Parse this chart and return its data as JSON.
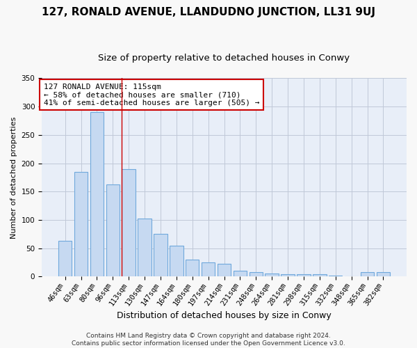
{
  "title1": "127, RONALD AVENUE, LLANDUDNO JUNCTION, LL31 9UJ",
  "title2": "Size of property relative to detached houses in Conwy",
  "xlabel": "Distribution of detached houses by size in Conwy",
  "ylabel": "Number of detached properties",
  "categories": [
    "46sqm",
    "63sqm",
    "80sqm",
    "96sqm",
    "113sqm",
    "130sqm",
    "147sqm",
    "164sqm",
    "180sqm",
    "197sqm",
    "214sqm",
    "231sqm",
    "248sqm",
    "264sqm",
    "281sqm",
    "298sqm",
    "315sqm",
    "332sqm",
    "348sqm",
    "365sqm",
    "382sqm"
  ],
  "values": [
    63,
    185,
    290,
    163,
    190,
    103,
    75,
    55,
    30,
    25,
    22,
    10,
    8,
    5,
    4,
    4,
    4,
    2,
    1,
    8,
    8
  ],
  "bar_color": "#c6d9f1",
  "bar_edge_color": "#6fa8dc",
  "bar_linewidth": 0.8,
  "grid_color": "#c0c8d8",
  "bg_color": "#e8eef8",
  "fig_bg_color": "#f8f8f8",
  "annotation_box_color": "#ffffff",
  "annotation_border_color": "#cc0000",
  "annotation_text_line1": "127 RONALD AVENUE: 115sqm",
  "annotation_text_line2": "← 58% of detached houses are smaller (710)",
  "annotation_text_line3": "41% of semi-detached houses are larger (505) →",
  "ylim": [
    0,
    350
  ],
  "yticks": [
    0,
    50,
    100,
    150,
    200,
    250,
    300,
    350
  ],
  "footer_line1": "Contains HM Land Registry data © Crown copyright and database right 2024.",
  "footer_line2": "Contains public sector information licensed under the Open Government Licence v3.0.",
  "title1_fontsize": 11,
  "title2_fontsize": 9.5,
  "xlabel_fontsize": 9,
  "ylabel_fontsize": 8,
  "tick_fontsize": 7.5,
  "annotation_fontsize": 8,
  "footer_fontsize": 6.5
}
